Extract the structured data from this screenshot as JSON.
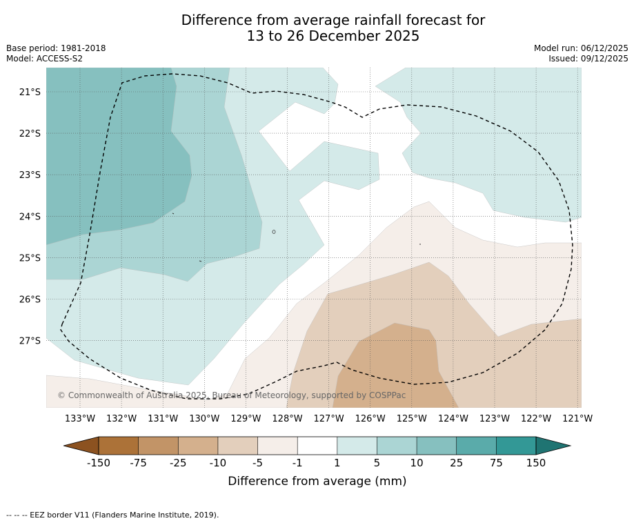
{
  "title": {
    "line1": "Difference from average rainfall forecast for",
    "line2": "13 to 26 December 2025"
  },
  "info_left": {
    "base_period": "Base period: 1981-2018",
    "model": "Model: ACCESS-S2"
  },
  "info_right": {
    "model_run": "Model run: 06/12/2025",
    "issued": "Issued: 09/12/2025"
  },
  "map": {
    "lat_labels": [
      "21°S",
      "22°S",
      "23°S",
      "24°S",
      "25°S",
      "26°S",
      "27°S"
    ],
    "lon_labels": [
      "133°W",
      "132°W",
      "131°W",
      "130°W",
      "129°W",
      "128°W",
      "127°W",
      "126°W",
      "125°W",
      "124°W",
      "123°W",
      "122°W",
      "121°W"
    ],
    "copyright": "© Commonwealth of Australia 2025, Bureau of Meteorology, supported by COSPPac",
    "regions": [
      {
        "name": "dry-5-to-1-region",
        "category": "-5 to -1"
      },
      {
        "name": "dry-10-to-5-region",
        "category": "-10 to -5"
      },
      {
        "name": "dry-25-to-10-region",
        "category": "-25 to -10"
      },
      {
        "name": "wet-1-to-5-region",
        "category": "1 to 5"
      },
      {
        "name": "wet-5-to-10-region",
        "category": "5 to 10"
      },
      {
        "name": "wet-10-to-25-region",
        "category": "10 to 25"
      }
    ]
  },
  "colorbar": {
    "ticks": [
      "-150",
      "-75",
      "-25",
      "-10",
      "-5",
      "-1",
      "1",
      "5",
      "10",
      "25",
      "75",
      "150"
    ],
    "colors": [
      "#ac7238",
      "#c29467",
      "#d4b08d",
      "#e3cfbc",
      "#f5eee9",
      "#ffffff",
      "#d4eae9",
      "#abd5d4",
      "#86c0bf",
      "#5aabaa",
      "#339896"
    ],
    "end_colors": [
      "#8c5220",
      "#1f7472"
    ],
    "label": "Difference from average (mm)"
  },
  "footer": "--  --  -- EEZ border V11 (Flanders Marine Institute, 2019)."
}
